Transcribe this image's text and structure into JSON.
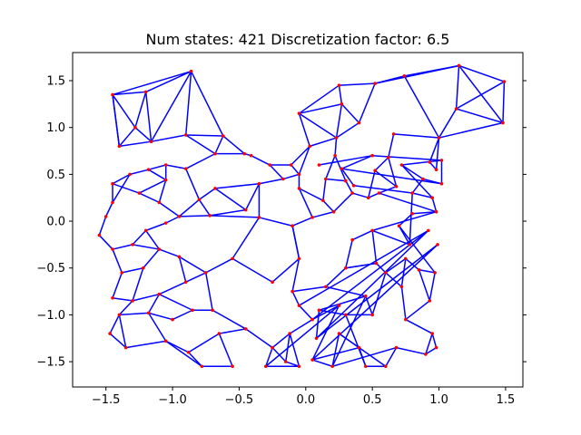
{
  "chart_data": {
    "type": "network",
    "title": "Num states: 421 Discretization factor: 6.5",
    "xlabel": "",
    "ylabel": "",
    "xlim": [
      -1.75,
      1.63
    ],
    "ylim": [
      -1.77,
      1.8
    ],
    "xticks": [
      -1.5,
      -1.0,
      -0.5,
      0.0,
      0.5,
      1.0,
      1.5
    ],
    "xtick_labels": [
      "−1.5",
      "−1.0",
      "−0.5",
      "0.0",
      "0.5",
      "1.0",
      "1.5"
    ],
    "yticks": [
      -1.5,
      -1.0,
      -0.5,
      0.0,
      0.5,
      1.0,
      1.5
    ],
    "ytick_labels": [
      "−1.5",
      "−1.0",
      "−0.5",
      "0.0",
      "0.5",
      "1.0",
      "1.5"
    ],
    "grid": false,
    "edge_color": "#0000ff",
    "node_color": "#ff0000",
    "nodes": [
      [
        -1.45,
        1.35
      ],
      [
        -1.2,
        1.38
      ],
      [
        -0.86,
        1.6
      ],
      [
        -1.28,
        1.0
      ],
      [
        -1.4,
        0.8
      ],
      [
        -1.16,
        0.85
      ],
      [
        -0.9,
        0.92
      ],
      [
        -0.62,
        0.91
      ],
      [
        -0.68,
        0.72
      ],
      [
        -0.46,
        0.72
      ],
      [
        -0.41,
        0.7
      ],
      [
        -0.27,
        0.6
      ],
      [
        -0.11,
        0.6
      ],
      [
        0.03,
        0.8
      ],
      [
        -0.05,
        0.5
      ],
      [
        0.25,
        1.45
      ],
      [
        0.27,
        1.25
      ],
      [
        -0.05,
        1.15
      ],
      [
        0.23,
        0.89
      ],
      [
        0.4,
        1.05
      ],
      [
        0.52,
        1.47
      ],
      [
        0.74,
        1.55
      ],
      [
        1.15,
        1.66
      ],
      [
        1.49,
        1.49
      ],
      [
        1.48,
        1.05
      ],
      [
        1.13,
        1.2
      ],
      [
        1.0,
        0.89
      ],
      [
        0.93,
        0.63
      ],
      [
        0.98,
        0.55
      ],
      [
        0.66,
        0.93
      ],
      [
        0.62,
        0.68
      ],
      [
        0.68,
        0.37
      ],
      [
        0.52,
        0.54
      ],
      [
        0.47,
        0.25
      ],
      [
        0.55,
        0.3
      ],
      [
        0.35,
        0.3
      ],
      [
        0.3,
        0.43
      ],
      [
        0.15,
        0.45
      ],
      [
        0.22,
        0.7
      ],
      [
        0.21,
        0.1
      ],
      [
        0.13,
        0.22
      ],
      [
        -0.05,
        0.35
      ],
      [
        -0.17,
        0.45
      ],
      [
        -0.35,
        0.4
      ],
      [
        -0.45,
        0.12
      ],
      [
        -0.68,
        0.35
      ],
      [
        -0.8,
        0.23
      ],
      [
        -0.9,
        0.56
      ],
      [
        -1.05,
        0.6
      ],
      [
        -1.18,
        0.55
      ],
      [
        -1.32,
        0.5
      ],
      [
        -1.45,
        0.4
      ],
      [
        -1.25,
        0.3
      ],
      [
        -1.05,
        0.44
      ],
      [
        -1.1,
        0.2
      ],
      [
        -1.45,
        0.2
      ],
      [
        -1.5,
        0.05
      ],
      [
        -1.55,
        -0.15
      ],
      [
        -1.45,
        -0.3
      ],
      [
        -1.3,
        -0.25
      ],
      [
        -1.2,
        -0.1
      ],
      [
        -1.05,
        -0.02
      ],
      [
        -0.95,
        0.05
      ],
      [
        -0.72,
        0.06
      ],
      [
        -0.35,
        0.04
      ],
      [
        -0.1,
        -0.05
      ],
      [
        0.05,
        0.04
      ],
      [
        -0.05,
        -0.4
      ],
      [
        -0.25,
        -0.65
      ],
      [
        -0.55,
        -0.4
      ],
      [
        -0.75,
        -0.55
      ],
      [
        -0.95,
        -0.38
      ],
      [
        -1.1,
        -0.3
      ],
      [
        -1.22,
        -0.5
      ],
      [
        -1.38,
        -0.55
      ],
      [
        -1.45,
        -0.82
      ],
      [
        -1.3,
        -0.85
      ],
      [
        -1.1,
        -0.78
      ],
      [
        -0.9,
        -0.65
      ],
      [
        -0.7,
        -0.95
      ],
      [
        -0.85,
        -0.95
      ],
      [
        -1.0,
        -1.05
      ],
      [
        -1.18,
        -0.98
      ],
      [
        -1.4,
        -1.0
      ],
      [
        -1.47,
        -1.2
      ],
      [
        -1.35,
        -1.35
      ],
      [
        -1.05,
        -1.28
      ],
      [
        -0.88,
        -1.4
      ],
      [
        -0.78,
        -1.55
      ],
      [
        -0.65,
        -1.2
      ],
      [
        -0.45,
        -1.15
      ],
      [
        -0.55,
        -1.55
      ],
      [
        -0.25,
        -1.35
      ],
      [
        -0.15,
        -1.5
      ],
      [
        -0.05,
        -1.55
      ],
      [
        -0.3,
        -1.55
      ],
      [
        -0.12,
        -1.2
      ],
      [
        0.05,
        -1.05
      ],
      [
        -0.05,
        -0.9
      ],
      [
        -0.1,
        -0.75
      ],
      [
        0.15,
        -0.7
      ],
      [
        0.3,
        -0.5
      ],
      [
        0.35,
        -0.2
      ],
      [
        0.5,
        -0.1
      ],
      [
        0.53,
        -0.45
      ],
      [
        0.6,
        -0.55
      ],
      [
        0.75,
        -0.4
      ],
      [
        0.72,
        -0.7
      ],
      [
        0.85,
        -0.52
      ],
      [
        0.97,
        -0.55
      ],
      [
        0.93,
        -0.85
      ],
      [
        0.75,
        -1.05
      ],
      [
        0.95,
        -1.2
      ],
      [
        0.98,
        -1.35
      ],
      [
        0.9,
        -1.42
      ],
      [
        0.68,
        -1.35
      ],
      [
        0.6,
        -1.55
      ],
      [
        0.45,
        -1.55
      ],
      [
        0.4,
        -1.35
      ],
      [
        0.25,
        -1.2
      ],
      [
        0.2,
        -1.55
      ],
      [
        0.05,
        -1.48
      ],
      [
        0.25,
        -0.9
      ],
      [
        0.45,
        -0.8
      ],
      [
        0.5,
        -1.0
      ],
      [
        0.3,
        -1.0
      ],
      [
        0.1,
        -0.95
      ],
      [
        0.08,
        -1.25
      ],
      [
        0.92,
        -0.1
      ],
      [
        0.99,
        -0.25
      ],
      [
        0.78,
        -0.25
      ],
      [
        0.7,
        -0.05
      ],
      [
        0.8,
        0.08
      ],
      [
        0.98,
        0.1
      ],
      [
        0.95,
        0.25
      ],
      [
        0.8,
        0.3
      ],
      [
        0.88,
        0.45
      ],
      [
        0.72,
        0.6
      ],
      [
        1.02,
        0.65
      ],
      [
        1.02,
        0.4
      ],
      [
        0.5,
        0.7
      ],
      [
        0.27,
        0.56
      ],
      [
        0.36,
        0.38
      ],
      [
        0.1,
        0.6
      ]
    ],
    "edges": [
      [
        0,
        1
      ],
      [
        0,
        2
      ],
      [
        1,
        2
      ],
      [
        0,
        3
      ],
      [
        1,
        3
      ],
      [
        0,
        4
      ],
      [
        3,
        4
      ],
      [
        3,
        5
      ],
      [
        4,
        5
      ],
      [
        1,
        5
      ],
      [
        2,
        6
      ],
      [
        5,
        6
      ],
      [
        2,
        7
      ],
      [
        6,
        7
      ],
      [
        7,
        8
      ],
      [
        6,
        8
      ],
      [
        7,
        9
      ],
      [
        8,
        9
      ],
      [
        9,
        10
      ],
      [
        10,
        11
      ],
      [
        11,
        12
      ],
      [
        12,
        13
      ],
      [
        13,
        14
      ],
      [
        12,
        14
      ],
      [
        13,
        17
      ],
      [
        17,
        15
      ],
      [
        15,
        16
      ],
      [
        16,
        17
      ],
      [
        13,
        18
      ],
      [
        17,
        18
      ],
      [
        16,
        18
      ],
      [
        16,
        19
      ],
      [
        18,
        19
      ],
      [
        15,
        20
      ],
      [
        20,
        21
      ],
      [
        21,
        22
      ],
      [
        22,
        23
      ],
      [
        23,
        24
      ],
      [
        22,
        24
      ],
      [
        22,
        25
      ],
      [
        25,
        24
      ],
      [
        25,
        26
      ],
      [
        24,
        26
      ],
      [
        23,
        25
      ],
      [
        21,
        26
      ],
      [
        26,
        27
      ],
      [
        27,
        28
      ],
      [
        26,
        28
      ],
      [
        26,
        29
      ],
      [
        29,
        30
      ],
      [
        30,
        31
      ],
      [
        30,
        32
      ],
      [
        31,
        32
      ],
      [
        32,
        33
      ],
      [
        33,
        34
      ],
      [
        31,
        34
      ],
      [
        33,
        35
      ],
      [
        35,
        36
      ],
      [
        36,
        37
      ],
      [
        37,
        38
      ],
      [
        38,
        18
      ],
      [
        36,
        38
      ],
      [
        35,
        39
      ],
      [
        39,
        40
      ],
      [
        40,
        37
      ],
      [
        40,
        41
      ],
      [
        41,
        14
      ],
      [
        14,
        42
      ],
      [
        42,
        11
      ],
      [
        42,
        43
      ],
      [
        43,
        44
      ],
      [
        44,
        45
      ],
      [
        45,
        46
      ],
      [
        46,
        47
      ],
      [
        47,
        48
      ],
      [
        48,
        49
      ],
      [
        49,
        50
      ],
      [
        50,
        51
      ],
      [
        51,
        52
      ],
      [
        52,
        53
      ],
      [
        53,
        49
      ],
      [
        48,
        53
      ],
      [
        53,
        54
      ],
      [
        54,
        52
      ],
      [
        51,
        55
      ],
      [
        55,
        56
      ],
      [
        56,
        57
      ],
      [
        57,
        58
      ],
      [
        58,
        59
      ],
      [
        59,
        60
      ],
      [
        60,
        61
      ],
      [
        61,
        62
      ],
      [
        62,
        54
      ],
      [
        62,
        63
      ],
      [
        63,
        46
      ],
      [
        63,
        44
      ],
      [
        63,
        64
      ],
      [
        64,
        43
      ],
      [
        64,
        65
      ],
      [
        65,
        66
      ],
      [
        66,
        39
      ],
      [
        66,
        41
      ],
      [
        65,
        67
      ],
      [
        67,
        68
      ],
      [
        68,
        69
      ],
      [
        69,
        70
      ],
      [
        70,
        71
      ],
      [
        71,
        72
      ],
      [
        72,
        59
      ],
      [
        72,
        73
      ],
      [
        73,
        74
      ],
      [
        74,
        58
      ],
      [
        74,
        75
      ],
      [
        75,
        76
      ],
      [
        76,
        73
      ],
      [
        76,
        77
      ],
      [
        77,
        78
      ],
      [
        78,
        71
      ],
      [
        78,
        70
      ],
      [
        77,
        80
      ],
      [
        80,
        79
      ],
      [
        79,
        70
      ],
      [
        80,
        81
      ],
      [
        81,
        82
      ],
      [
        82,
        77
      ],
      [
        82,
        83
      ],
      [
        83,
        76
      ],
      [
        83,
        84
      ],
      [
        84,
        85
      ],
      [
        85,
        83
      ],
      [
        85,
        86
      ],
      [
        86,
        82
      ],
      [
        86,
        87
      ],
      [
        87,
        88
      ],
      [
        86,
        88
      ],
      [
        87,
        89
      ],
      [
        89,
        90
      ],
      [
        90,
        79
      ],
      [
        89,
        91
      ],
      [
        91,
        88
      ],
      [
        90,
        92
      ],
      [
        92,
        93
      ],
      [
        93,
        94
      ],
      [
        94,
        95
      ],
      [
        95,
        92
      ],
      [
        93,
        96
      ],
      [
        96,
        92
      ],
      [
        96,
        97
      ],
      [
        97,
        98
      ],
      [
        98,
        99
      ],
      [
        99,
        67
      ],
      [
        99,
        100
      ],
      [
        100,
        101
      ],
      [
        101,
        102
      ],
      [
        102,
        103
      ],
      [
        103,
        104
      ],
      [
        104,
        101
      ],
      [
        104,
        105
      ],
      [
        105,
        106
      ],
      [
        106,
        107
      ],
      [
        107,
        105
      ],
      [
        106,
        108
      ],
      [
        108,
        109
      ],
      [
        109,
        110
      ],
      [
        110,
        108
      ],
      [
        110,
        111
      ],
      [
        111,
        107
      ],
      [
        111,
        112
      ],
      [
        112,
        113
      ],
      [
        113,
        114
      ],
      [
        114,
        112
      ],
      [
        114,
        115
      ],
      [
        115,
        116
      ],
      [
        116,
        117
      ],
      [
        117,
        118
      ],
      [
        118,
        119
      ],
      [
        119,
        116
      ],
      [
        119,
        120
      ],
      [
        120,
        121
      ],
      [
        121,
        118
      ],
      [
        121,
        122
      ],
      [
        122,
        95
      ],
      [
        122,
        97
      ],
      [
        120,
        123
      ],
      [
        123,
        124
      ],
      [
        124,
        125
      ],
      [
        125,
        126
      ],
      [
        126,
        123
      ],
      [
        126,
        127
      ],
      [
        127,
        128
      ],
      [
        128,
        98
      ],
      [
        128,
        97
      ],
      [
        129,
        121
      ],
      [
        129,
        127
      ],
      [
        124,
        105
      ],
      [
        125,
        117
      ],
      [
        100,
        123
      ],
      [
        103,
        130
      ],
      [
        130,
        131
      ],
      [
        131,
        132
      ],
      [
        132,
        133
      ],
      [
        133,
        103
      ],
      [
        133,
        134
      ],
      [
        134,
        135
      ],
      [
        135,
        130
      ],
      [
        135,
        136
      ],
      [
        136,
        137
      ],
      [
        137,
        134
      ],
      [
        137,
        138
      ],
      [
        138,
        139
      ],
      [
        139,
        136
      ],
      [
        138,
        140
      ],
      [
        140,
        141
      ],
      [
        141,
        139
      ],
      [
        141,
        142
      ],
      [
        142,
        135
      ],
      [
        140,
        143
      ],
      [
        143,
        144
      ],
      [
        144,
        33
      ],
      [
        144,
        32
      ],
      [
        143,
        145
      ],
      [
        145,
        36
      ],
      [
        145,
        35
      ],
      [
        37,
        147
      ],
      [
        147,
        12
      ],
      [
        146,
        13
      ],
      [
        0,
        4
      ],
      [
        50,
        55
      ],
      [
        60,
        72
      ],
      [
        62,
        46
      ],
      [
        69,
        64
      ],
      [
        67,
        65
      ],
      [
        34,
        133
      ],
      [
        131,
        109
      ],
      [
        2,
        5
      ],
      [
        20,
        22
      ],
      [
        19,
        20
      ],
      [
        8,
        47
      ],
      [
        45,
        43
      ],
      [
        101,
        104
      ],
      [
        115,
        120
      ],
      [
        94,
        96
      ]
    ]
  }
}
